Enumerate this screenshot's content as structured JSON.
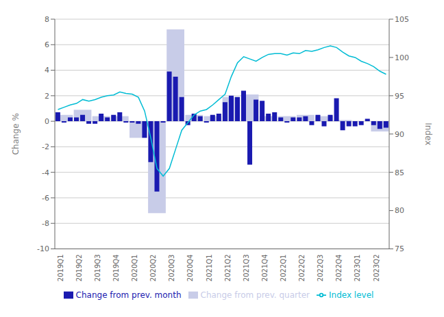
{
  "chart_data": {
    "type": "bar",
    "categories": [
      "2019Q1",
      null,
      null,
      "2019Q2",
      null,
      null,
      "2019Q3",
      null,
      null,
      "2019Q4",
      null,
      null,
      "2020Q1",
      null,
      null,
      "2020Q2",
      null,
      null,
      "2020Q3",
      null,
      null,
      "2020Q4",
      null,
      null,
      "2021Q1",
      null,
      null,
      "2021Q2",
      null,
      null,
      "2021Q3",
      null,
      null,
      "2021Q4",
      null,
      null,
      "2022Q1",
      null,
      null,
      "2022Q2",
      null,
      null,
      "2022Q3",
      null,
      null,
      "2022Q4",
      null,
      null,
      "2023Q1",
      null,
      null,
      "2023Q2",
      null,
      null
    ],
    "series": [
      {
        "name": "Change from prev. quarter",
        "type": "bar",
        "color": "#c8cce8",
        "values": [
          null,
          0.5,
          null,
          null,
          0.9,
          null,
          null,
          0.4,
          null,
          null,
          0.4,
          null,
          null,
          -1.3,
          null,
          null,
          -7.2,
          null,
          null,
          7.2,
          null,
          null,
          0.5,
          null,
          null,
          0.4,
          null,
          null,
          1.9,
          null,
          null,
          2.1,
          null,
          null,
          0.4,
          null,
          null,
          0.4,
          null,
          null,
          0.5,
          null,
          null,
          0.4,
          null,
          null,
          0.1,
          null,
          null,
          0.0,
          null,
          null,
          -0.8,
          null
        ]
      },
      {
        "name": "Change from prev. month",
        "type": "bar",
        "color": "#1a1ab0",
        "values": [
          0.7,
          -0.1,
          0.3,
          0.3,
          0.5,
          -0.2,
          -0.2,
          0.6,
          0.3,
          0.5,
          0.7,
          -0.1,
          -0.1,
          -0.2,
          -1.3,
          -3.2,
          -5.5,
          -0.1,
          3.9,
          3.5,
          1.9,
          -0.3,
          0.6,
          0.4,
          -0.1,
          0.5,
          0.6,
          1.5,
          2.0,
          1.9,
          2.4,
          -3.4,
          1.7,
          1.6,
          0.6,
          0.7,
          0.3,
          -0.1,
          0.3,
          0.3,
          0.4,
          -0.3,
          0.5,
          -0.4,
          0.5,
          1.8,
          -0.7,
          -0.4,
          -0.4,
          -0.3,
          0.2,
          -0.3,
          -0.6,
          -0.5
        ]
      },
      {
        "name": "Index level",
        "type": "line",
        "color": "#00bcd4",
        "axis": "y2",
        "values": [
          93.2,
          93.5,
          93.8,
          94.0,
          94.5,
          94.3,
          94.5,
          94.8,
          95.0,
          95.1,
          95.5,
          95.3,
          95.2,
          94.8,
          93.0,
          89.5,
          85.5,
          84.5,
          85.5,
          88.0,
          90.5,
          91.5,
          92.5,
          93.0,
          93.2,
          93.8,
          94.5,
          95.2,
          97.5,
          99.3,
          100.1,
          99.8,
          99.5,
          100.0,
          100.4,
          100.5,
          100.5,
          100.3,
          100.6,
          100.5,
          100.9,
          100.8,
          101.0,
          101.3,
          101.5,
          101.3,
          100.7,
          100.2,
          100.0,
          99.5,
          99.2,
          98.8,
          98.2,
          97.8
        ]
      }
    ],
    "ylabel": "Change %",
    "y2label": "Index",
    "ylim": [
      -10,
      8
    ],
    "yticks": [
      -10,
      -8,
      -6,
      -4,
      -2,
      0,
      2,
      4,
      6,
      8
    ],
    "y2lim": [
      75,
      105
    ],
    "y2ticks": [
      75,
      80,
      85,
      90,
      95,
      100,
      105
    ],
    "grid": true,
    "legend": "bottom"
  }
}
